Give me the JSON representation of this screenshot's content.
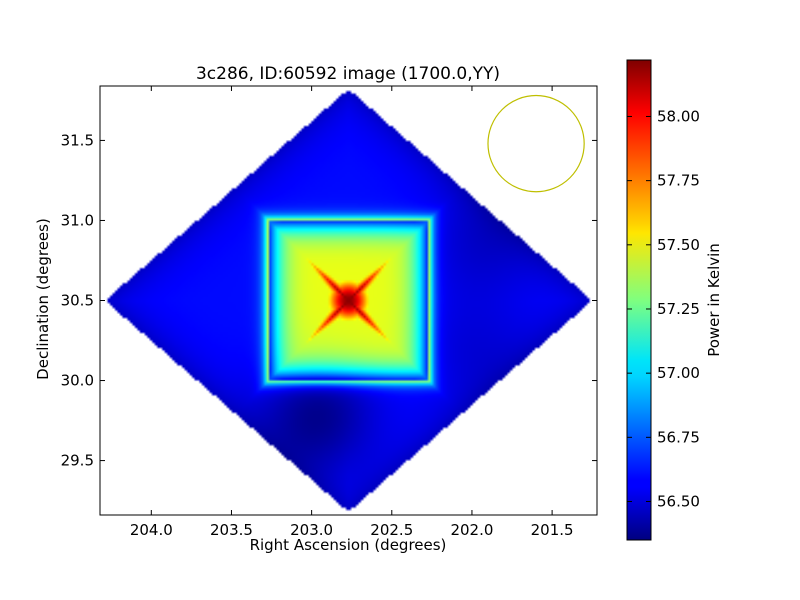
{
  "chart_data": {
    "type": "heatmap",
    "title": "3c286, ID:60592 image (1700.0,YY)",
    "xlabel": "Right Ascension (degrees)",
    "ylabel": "Declination (degrees)",
    "xlim": [
      204.32,
      201.22
    ],
    "ylim": [
      29.16,
      31.84
    ],
    "x_ticks": [
      "204.0",
      "203.5",
      "203.0",
      "202.5",
      "202.0",
      "201.5"
    ],
    "y_ticks": [
      "29.5",
      "30.0",
      "30.5",
      "31.0",
      "31.5"
    ],
    "colorbar": {
      "label": "Power in Kelvin",
      "range": [
        56.35,
        58.22
      ],
      "ticks": [
        "56.50",
        "56.75",
        "57.00",
        "57.25",
        "57.50",
        "57.75",
        "58.00"
      ],
      "colormap": "jet"
    },
    "footprint": {
      "center_ra": 202.77,
      "center_dec": 30.5,
      "half_width_ra": 1.52,
      "half_width_dec": 1.32
    },
    "peak": {
      "ra": 202.77,
      "dec": 30.5,
      "value": 58.2
    },
    "background_value": 56.6,
    "local_minima": [
      {
        "ra": 202.96,
        "dec": 29.78,
        "value": 56.38
      },
      {
        "ra": 201.95,
        "dec": 30.84,
        "value": 56.5
      },
      {
        "ra": 202.0,
        "dec": 30.2,
        "value": 56.52
      }
    ],
    "beam_circle": {
      "ra": 201.6,
      "dec": 31.48,
      "radius_deg": 0.3,
      "color": "#bfbf00"
    }
  }
}
